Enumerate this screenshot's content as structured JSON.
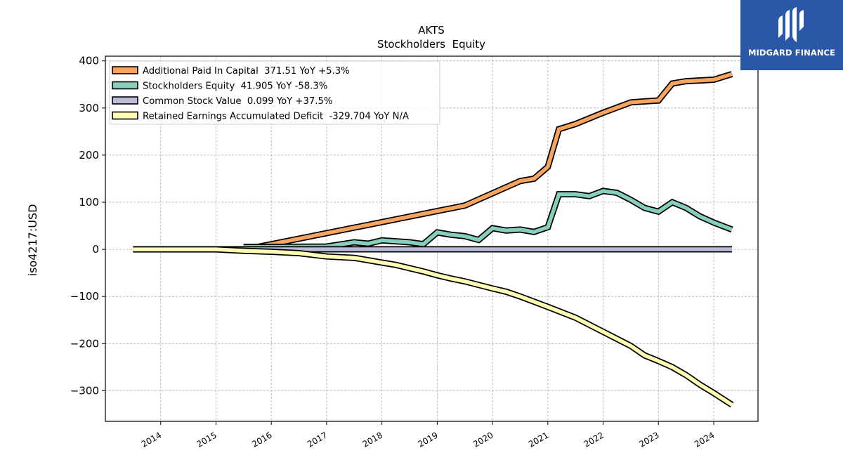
{
  "brand": {
    "name": "MIDGARD FINANCE",
    "bg_color": "#2b57a8"
  },
  "chart_data": {
    "type": "line",
    "title": "AKTS",
    "subtitle": "Stockholders  Equity",
    "ylabel": "iso4217:USD",
    "xlabel": "",
    "ylim": [
      -365,
      410
    ],
    "xlim": [
      2013.0,
      2024.8
    ],
    "yticks": [
      -300,
      -200,
      -100,
      0,
      100,
      200,
      300,
      400
    ],
    "ytick_labels": [
      "−300",
      "−200",
      "−100",
      "0",
      "100",
      "200",
      "300",
      "400"
    ],
    "xticks": [
      2014,
      2015,
      2016,
      2017,
      2018,
      2019,
      2020,
      2021,
      2022,
      2023,
      2024
    ],
    "xtick_labels": [
      "2014",
      "2015",
      "2016",
      "2017",
      "2018",
      "2019",
      "2020",
      "2021",
      "2022",
      "2023",
      "2024"
    ],
    "grid": true,
    "legend_position": "top-left",
    "series": [
      {
        "name": "Additional Paid In Capital  371.51 YoY +5.3%",
        "color": "#f6a45e",
        "x": [
          2015.5,
          2015.75,
          2019.5,
          2020.5,
          2020.75,
          2021.0,
          2021.2,
          2021.5,
          2022.0,
          2022.5,
          2022.75,
          2023.0,
          2023.25,
          2023.5,
          2024.0,
          2024.33
        ],
        "y": [
          5,
          5,
          93,
          145,
          150,
          175,
          255,
          266,
          290,
          312,
          314,
          316,
          352,
          357,
          360,
          372
        ]
      },
      {
        "name": "Stockholders Equity  41.905 YoY -58.3%",
        "color": "#86cfbc",
        "x": [
          2015.5,
          2015.75,
          2017.0,
          2017.5,
          2017.75,
          2018.0,
          2018.5,
          2018.75,
          2019.0,
          2019.25,
          2019.5,
          2019.75,
          2020.0,
          2020.25,
          2020.5,
          2020.75,
          2021.0,
          2021.2,
          2021.5,
          2021.75,
          2022.0,
          2022.25,
          2022.5,
          2022.75,
          2023.0,
          2023.25,
          2023.5,
          2023.75,
          2024.0,
          2024.33
        ],
        "y": [
          5,
          5,
          6,
          15,
          12,
          19,
          15,
          11,
          36,
          31,
          28,
          20,
          45,
          40,
          42,
          37,
          47,
          117,
          117,
          113,
          124,
          120,
          105,
          88,
          80,
          100,
          88,
          70,
          57,
          42
        ]
      },
      {
        "name": "Common Stock Value  0.099 YoY +37.5%",
        "color": "#bcbcda",
        "x": [
          2013.5,
          2024.33
        ],
        "y": [
          0.1,
          0.1
        ]
      },
      {
        "name": "Retained Earnings Accumulated Deficit  -329.704 YoY N/A",
        "color": "#fdfdb4",
        "x": [
          2013.5,
          2015.0,
          2015.5,
          2016.0,
          2016.5,
          2017.0,
          2017.5,
          2018.0,
          2018.25,
          2018.5,
          2018.75,
          2019.0,
          2019.25,
          2019.5,
          2020.0,
          2020.25,
          2020.5,
          2021.0,
          2021.5,
          2022.0,
          2022.5,
          2022.75,
          2023.0,
          2023.25,
          2023.5,
          2023.75,
          2024.0,
          2024.33
        ],
        "y": [
          0,
          0,
          -3,
          -5,
          -8,
          -15,
          -18,
          -28,
          -33,
          -40,
          -47,
          -55,
          -62,
          -68,
          -83,
          -90,
          -100,
          -122,
          -145,
          -175,
          -205,
          -225,
          -237,
          -250,
          -267,
          -287,
          -305,
          -330
        ]
      }
    ]
  }
}
